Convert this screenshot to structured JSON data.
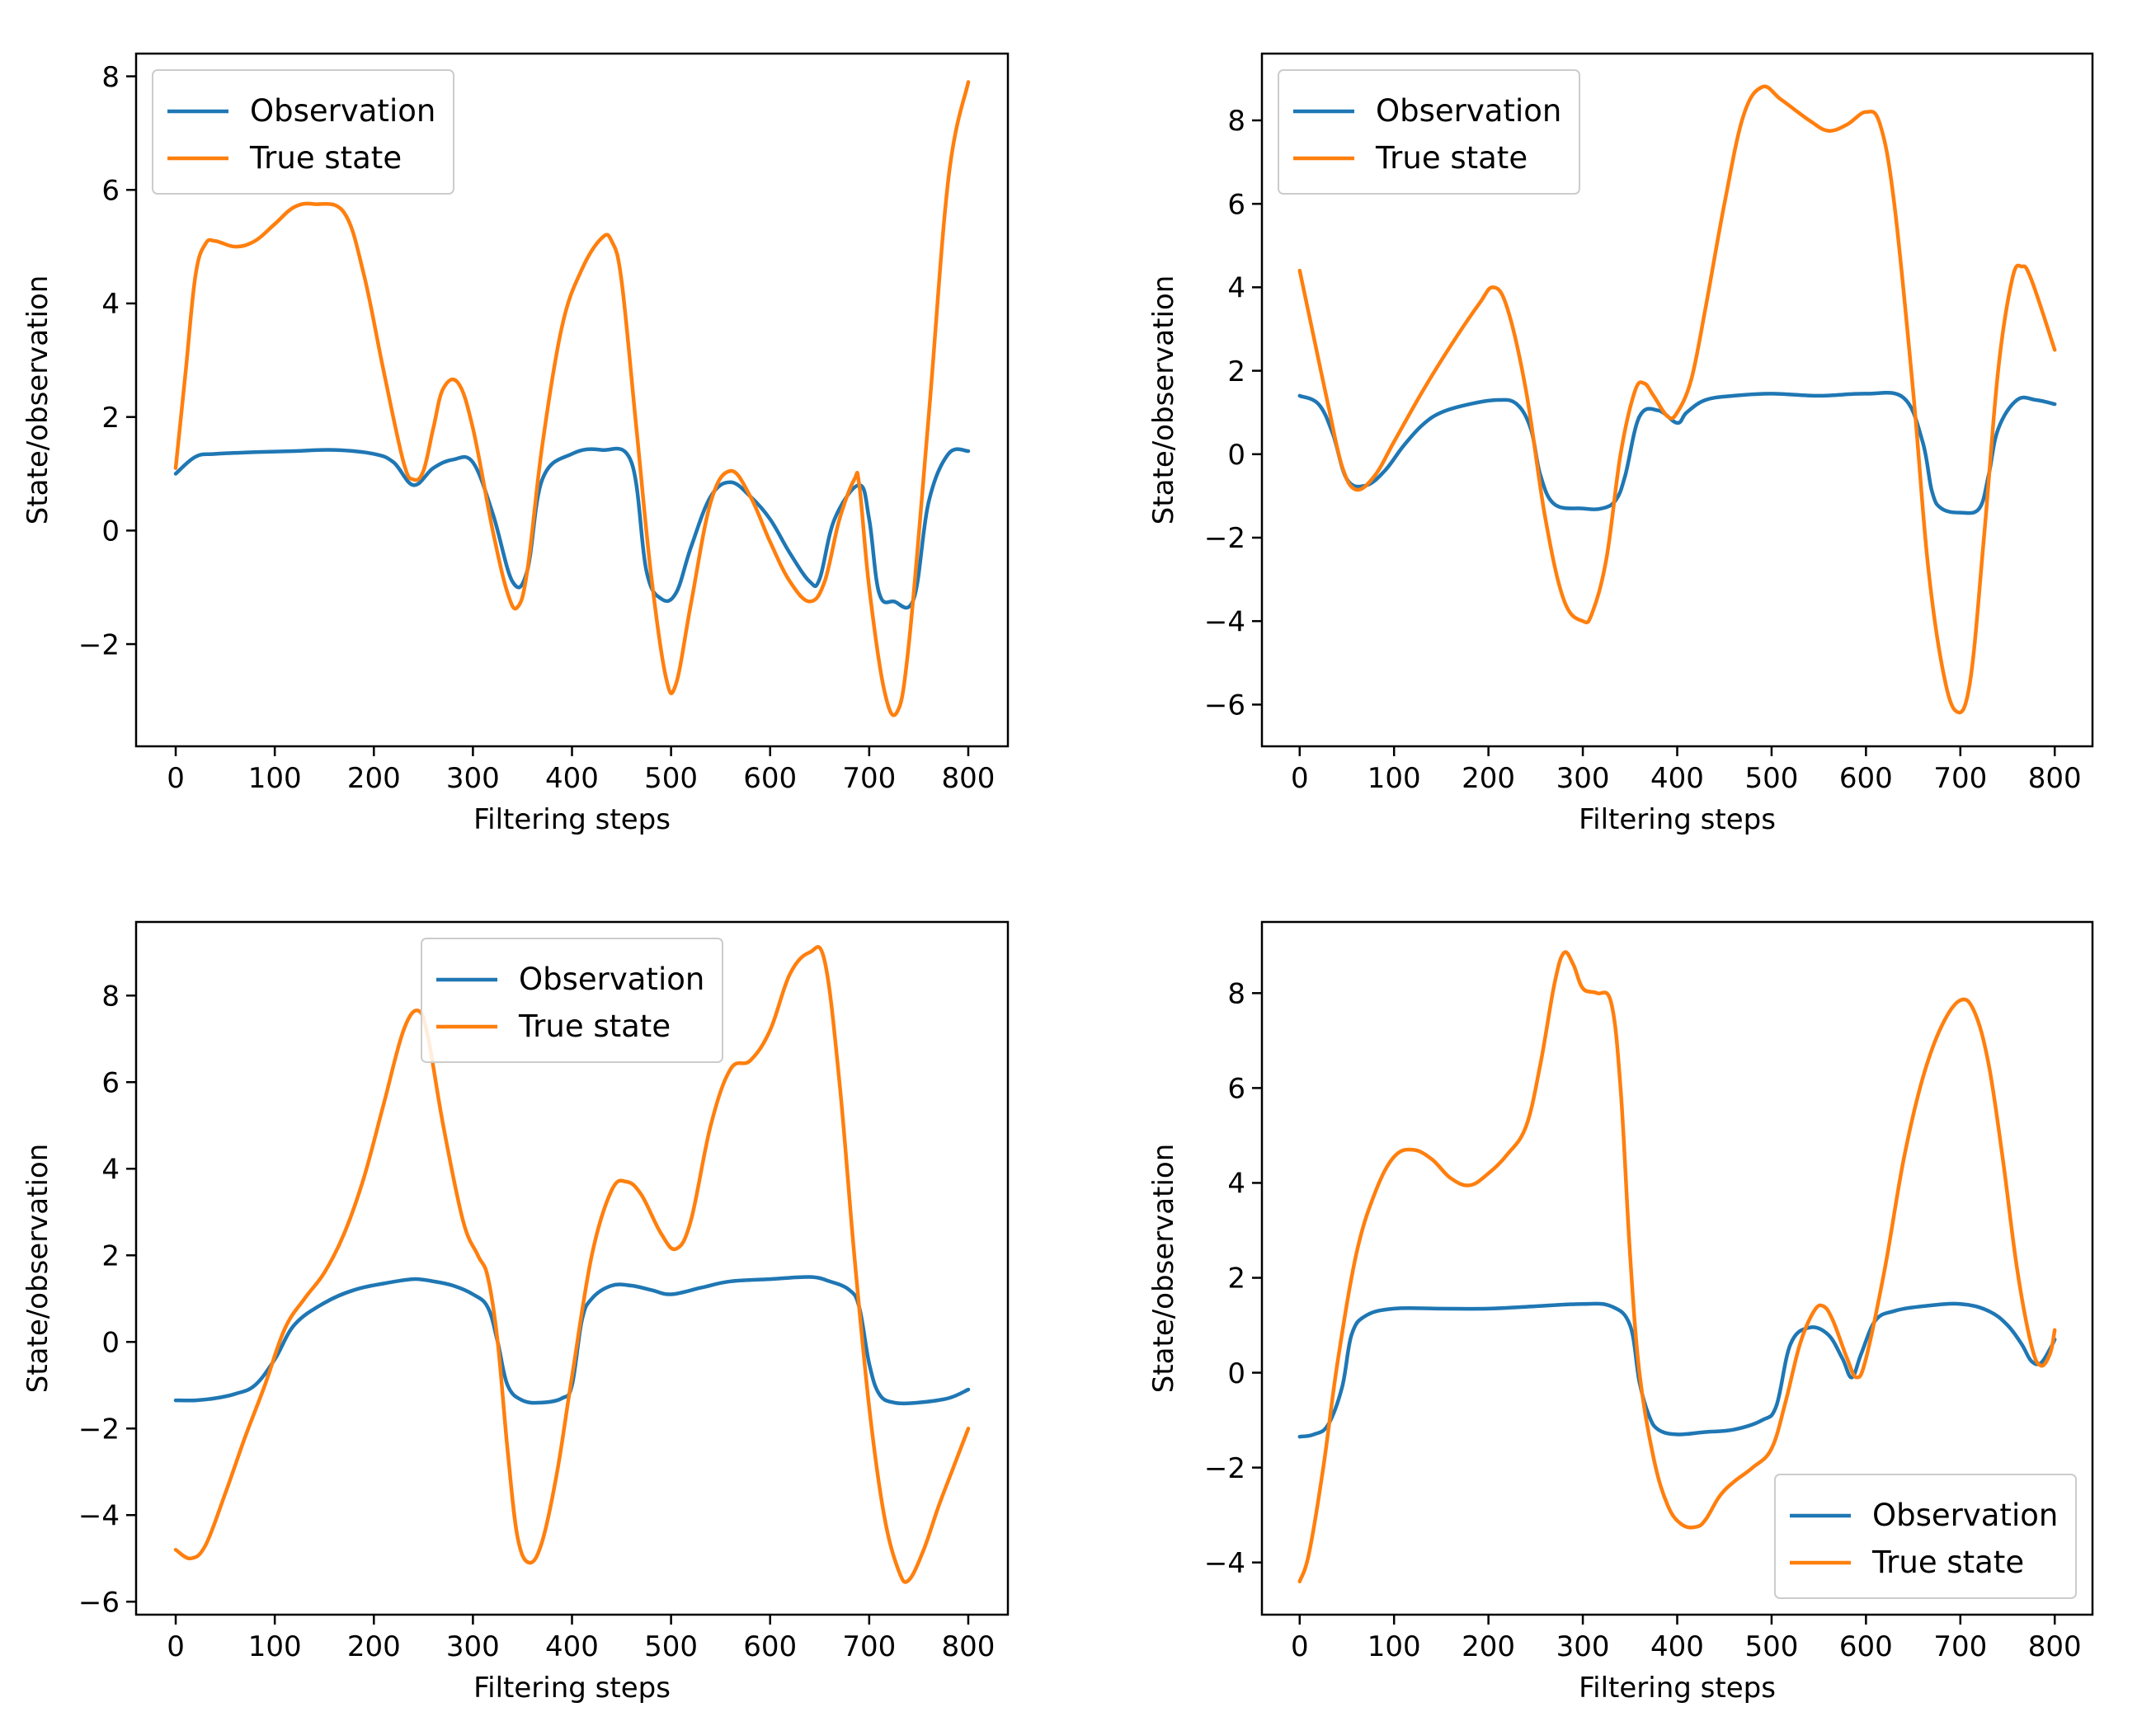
{
  "chart_data": [
    {
      "type": "line",
      "title": "",
      "xlabel": "Filtering steps",
      "ylabel": "State/observation",
      "xlim": [
        -40,
        840
      ],
      "ylim": [
        -3.8,
        8.4
      ],
      "xticks": [
        0,
        100,
        200,
        300,
        400,
        500,
        600,
        700,
        800
      ],
      "xtick_labels": [
        "0",
        "100",
        "200",
        "300",
        "400",
        "500",
        "600",
        "700",
        "800"
      ],
      "yticks": [
        -2,
        0,
        2,
        4,
        6,
        8
      ],
      "ytick_labels": [
        "−2",
        "0",
        "2",
        "4",
        "6",
        "8"
      ],
      "grid": false,
      "legend_position": "upper-left",
      "series": [
        {
          "name": "Observation",
          "color": "#1f77b4",
          "x": [
            0,
            20,
            40,
            80,
            120,
            160,
            200,
            220,
            240,
            260,
            280,
            300,
            320,
            340,
            355,
            370,
            400,
            430,
            460,
            475,
            490,
            505,
            520,
            540,
            560,
            580,
            600,
            620,
            640,
            650,
            665,
            690,
            700,
            710,
            725,
            745,
            760,
            780,
            800
          ],
          "y": [
            1.0,
            1.3,
            1.35,
            1.38,
            1.4,
            1.42,
            1.35,
            1.2,
            0.8,
            1.1,
            1.25,
            1.2,
            0.3,
            -0.9,
            -0.7,
            0.9,
            1.35,
            1.42,
            1.2,
            -0.7,
            -1.2,
            -1.1,
            -0.3,
            0.6,
            0.85,
            0.6,
            0.2,
            -0.4,
            -0.9,
            -0.85,
            0.2,
            0.8,
            0.2,
            -1.1,
            -1.25,
            -1.2,
            0.5,
            1.35,
            1.4
          ]
        },
        {
          "name": "True state",
          "color": "#ff7f0e",
          "x": [
            0,
            10,
            20,
            30,
            40,
            60,
            80,
            100,
            120,
            140,
            170,
            190,
            210,
            230,
            240,
            250,
            260,
            270,
            285,
            300,
            320,
            335,
            345,
            355,
            370,
            390,
            410,
            430,
            440,
            450,
            465,
            480,
            495,
            505,
            520,
            540,
            560,
            580,
            600,
            620,
            640,
            655,
            670,
            685,
            690,
            700,
            715,
            728,
            740,
            760,
            780,
            800
          ],
          "y": [
            1.1,
            2.8,
            4.5,
            5.05,
            5.1,
            5.0,
            5.1,
            5.4,
            5.7,
            5.75,
            5.6,
            4.5,
            2.8,
            1.2,
            0.9,
            1.05,
            1.8,
            2.5,
            2.6,
            1.8,
            0.0,
            -1.1,
            -1.35,
            -0.7,
            1.5,
            3.6,
            4.6,
            5.15,
            5.1,
            4.4,
            1.8,
            -0.8,
            -2.6,
            -2.7,
            -1.3,
            0.5,
            1.05,
            0.6,
            -0.2,
            -0.9,
            -1.25,
            -0.9,
            0.2,
            0.9,
            0.8,
            -1.0,
            -2.8,
            -3.2,
            -2.0,
            2.0,
            6.2,
            7.9
          ]
        }
      ]
    },
    {
      "type": "line",
      "title": "",
      "xlabel": "Filtering steps",
      "ylabel": "State/observation",
      "xlim": [
        -40,
        840
      ],
      "ylim": [
        -7.0,
        9.6
      ],
      "xticks": [
        0,
        100,
        200,
        300,
        400,
        500,
        600,
        700,
        800
      ],
      "xtick_labels": [
        "0",
        "100",
        "200",
        "300",
        "400",
        "500",
        "600",
        "700",
        "800"
      ],
      "yticks": [
        -6,
        -4,
        -2,
        0,
        2,
        4,
        6,
        8
      ],
      "ytick_labels": [
        "−6",
        "−4",
        "−2",
        "0",
        "2",
        "4",
        "6",
        "8"
      ],
      "grid": false,
      "legend_position": "upper-left",
      "series": [
        {
          "name": "Observation",
          "color": "#1f77b4",
          "x": [
            0,
            20,
            35,
            50,
            70,
            90,
            110,
            130,
            150,
            180,
            210,
            230,
            245,
            255,
            270,
            300,
            320,
            335,
            345,
            360,
            380,
            400,
            410,
            430,
            460,
            500,
            550,
            600,
            640,
            660,
            670,
            680,
            700,
            720,
            730,
            740,
            760,
            780,
            800
          ],
          "y": [
            1.4,
            1.2,
            0.5,
            -0.6,
            -0.75,
            -0.4,
            0.2,
            0.7,
            1.0,
            1.2,
            1.3,
            1.2,
            0.6,
            -0.5,
            -1.2,
            -1.3,
            -1.3,
            -1.1,
            -0.5,
            0.9,
            1.05,
            0.75,
            1.0,
            1.3,
            1.4,
            1.45,
            1.4,
            1.45,
            1.35,
            0.3,
            -0.9,
            -1.3,
            -1.4,
            -1.3,
            -0.5,
            0.6,
            1.3,
            1.3,
            1.2
          ]
        },
        {
          "name": "True state",
          "color": "#ff7f0e",
          "x": [
            0,
            15,
            30,
            45,
            60,
            80,
            100,
            130,
            160,
            190,
            205,
            220,
            240,
            260,
            280,
            300,
            310,
            325,
            340,
            355,
            365,
            375,
            390,
            400,
            415,
            430,
            450,
            470,
            490,
            510,
            540,
            560,
            580,
            600,
            615,
            630,
            650,
            665,
            680,
            695,
            710,
            725,
            740,
            755,
            765,
            775,
            800
          ],
          "y": [
            4.4,
            2.8,
            1.2,
            -0.3,
            -0.85,
            -0.5,
            0.3,
            1.5,
            2.6,
            3.6,
            4.0,
            3.5,
            1.5,
            -1.5,
            -3.5,
            -4.0,
            -3.8,
            -2.5,
            0.0,
            1.5,
            1.7,
            1.4,
            0.9,
            1.0,
            1.8,
            3.5,
            6.0,
            8.1,
            8.8,
            8.5,
            8.0,
            7.75,
            7.9,
            8.2,
            7.9,
            6.0,
            1.5,
            -2.5,
            -5.0,
            -6.15,
            -5.5,
            -2.0,
            2.0,
            4.2,
            4.5,
            4.2,
            2.5
          ]
        }
      ]
    },
    {
      "type": "line",
      "title": "",
      "xlabel": "Filtering steps",
      "ylabel": "State/observation",
      "xlim": [
        -40,
        840
      ],
      "ylim": [
        -6.3,
        9.7
      ],
      "xticks": [
        0,
        100,
        200,
        300,
        400,
        500,
        600,
        700,
        800
      ],
      "xtick_labels": [
        "0",
        "100",
        "200",
        "300",
        "400",
        "500",
        "600",
        "700",
        "800"
      ],
      "yticks": [
        -6,
        -4,
        -2,
        0,
        2,
        4,
        6,
        8
      ],
      "ytick_labels": [
        "−6",
        "−4",
        "−2",
        "0",
        "2",
        "4",
        "6",
        "8"
      ],
      "grid": false,
      "legend_position": "upper-center",
      "series": [
        {
          "name": "Observation",
          "color": "#1f77b4",
          "x": [
            0,
            20,
            40,
            60,
            80,
            100,
            120,
            150,
            180,
            210,
            240,
            260,
            280,
            300,
            315,
            325,
            335,
            350,
            370,
            390,
            400,
            410,
            420,
            440,
            460,
            480,
            500,
            530,
            560,
            600,
            640,
            660,
            680,
            690,
            700,
            710,
            725,
            750,
            780,
            800
          ],
          "y": [
            -1.35,
            -1.35,
            -1.3,
            -1.2,
            -1.0,
            -0.4,
            0.4,
            0.9,
            1.2,
            1.35,
            1.45,
            1.4,
            1.3,
            1.1,
            0.8,
            0.0,
            -1.0,
            -1.35,
            -1.4,
            -1.3,
            -1.0,
            0.5,
            1.0,
            1.3,
            1.3,
            1.2,
            1.1,
            1.25,
            1.4,
            1.45,
            1.5,
            1.4,
            1.2,
            0.8,
            -0.5,
            -1.2,
            -1.4,
            -1.4,
            -1.3,
            -1.1
          ]
        },
        {
          "name": "True state",
          "color": "#ff7f0e",
          "x": [
            0,
            15,
            30,
            50,
            70,
            90,
            110,
            130,
            150,
            170,
            190,
            210,
            230,
            245,
            255,
            270,
            290,
            305,
            315,
            325,
            335,
            345,
            357,
            370,
            385,
            400,
            420,
            440,
            455,
            470,
            490,
            505,
            520,
            540,
            560,
            580,
            600,
            620,
            640,
            655,
            670,
            685,
            700,
            715,
            730,
            740,
            755,
            770,
            785,
            800
          ],
          "y": [
            -4.8,
            -5.0,
            -4.7,
            -3.5,
            -2.2,
            -1.0,
            0.3,
            1.0,
            1.6,
            2.5,
            3.8,
            5.5,
            7.2,
            7.65,
            7.0,
            5.0,
            2.8,
            2.0,
            1.5,
            0.0,
            -2.5,
            -4.5,
            -5.1,
            -4.6,
            -3.0,
            -0.8,
            2.0,
            3.5,
            3.7,
            3.4,
            2.5,
            2.15,
            2.8,
            5.0,
            6.3,
            6.5,
            7.2,
            8.5,
            9.0,
            8.8,
            6.0,
            2.0,
            -1.5,
            -4.0,
            -5.3,
            -5.5,
            -4.8,
            -3.8,
            -2.9,
            -2.0
          ]
        }
      ]
    },
    {
      "type": "line",
      "title": "",
      "xlabel": "Filtering steps",
      "ylabel": "State/observation",
      "xlim": [
        -40,
        840
      ],
      "ylim": [
        -5.1,
        9.5
      ],
      "xticks": [
        0,
        100,
        200,
        300,
        400,
        500,
        600,
        700,
        800
      ],
      "xtick_labels": [
        "0",
        "100",
        "200",
        "300",
        "400",
        "500",
        "600",
        "700",
        "800"
      ],
      "yticks": [
        -4,
        -2,
        0,
        2,
        4,
        6,
        8
      ],
      "ytick_labels": [
        "−4",
        "−2",
        "0",
        "2",
        "4",
        "6",
        "8"
      ],
      "grid": false,
      "legend_position": "lower-right",
      "series": [
        {
          "name": "Observation",
          "color": "#1f77b4",
          "x": [
            0,
            15,
            30,
            45,
            55,
            70,
            100,
            150,
            200,
            250,
            300,
            330,
            350,
            360,
            370,
            380,
            400,
            430,
            460,
            490,
            505,
            520,
            540,
            560,
            575,
            585,
            595,
            610,
            630,
            660,
            700,
            730,
            750,
            765,
            775,
            785,
            795,
            800
          ],
          "y": [
            -1.35,
            -1.3,
            -1.1,
            -0.3,
            0.8,
            1.2,
            1.35,
            1.35,
            1.35,
            1.4,
            1.45,
            1.4,
            1.0,
            -0.2,
            -0.9,
            -1.2,
            -1.3,
            -1.25,
            -1.2,
            -1.0,
            -0.7,
            0.6,
            0.95,
            0.8,
            0.3,
            -0.1,
            0.4,
            1.1,
            1.3,
            1.4,
            1.45,
            1.3,
            1.0,
            0.6,
            0.25,
            0.2,
            0.5,
            0.7
          ]
        },
        {
          "name": "True state",
          "color": "#ff7f0e",
          "x": [
            0,
            10,
            25,
            40,
            60,
            80,
            100,
            120,
            140,
            160,
            180,
            200,
            220,
            240,
            255,
            270,
            280,
            290,
            300,
            315,
            330,
            340,
            350,
            360,
            375,
            390,
            405,
            420,
            430,
            445,
            460,
            480,
            500,
            515,
            530,
            545,
            555,
            565,
            580,
            590,
            600,
            620,
            640,
            660,
            680,
            700,
            715,
            730,
            745,
            760,
            775,
            785,
            795,
            800
          ],
          "y": [
            -4.4,
            -3.8,
            -2.0,
            0.2,
            2.5,
            3.8,
            4.55,
            4.7,
            4.5,
            4.1,
            3.95,
            4.2,
            4.6,
            5.2,
            6.5,
            8.2,
            8.85,
            8.6,
            8.1,
            8.0,
            7.8,
            6.0,
            2.5,
            0.0,
            -1.8,
            -2.8,
            -3.2,
            -3.25,
            -3.1,
            -2.6,
            -2.3,
            -2.0,
            -1.6,
            -0.6,
            0.6,
            1.3,
            1.4,
            1.1,
            0.3,
            -0.1,
            0.3,
            2.2,
            4.5,
            6.2,
            7.3,
            7.85,
            7.6,
            6.5,
            4.5,
            2.2,
            0.6,
            0.15,
            0.4,
            0.9
          ]
        }
      ]
    }
  ]
}
